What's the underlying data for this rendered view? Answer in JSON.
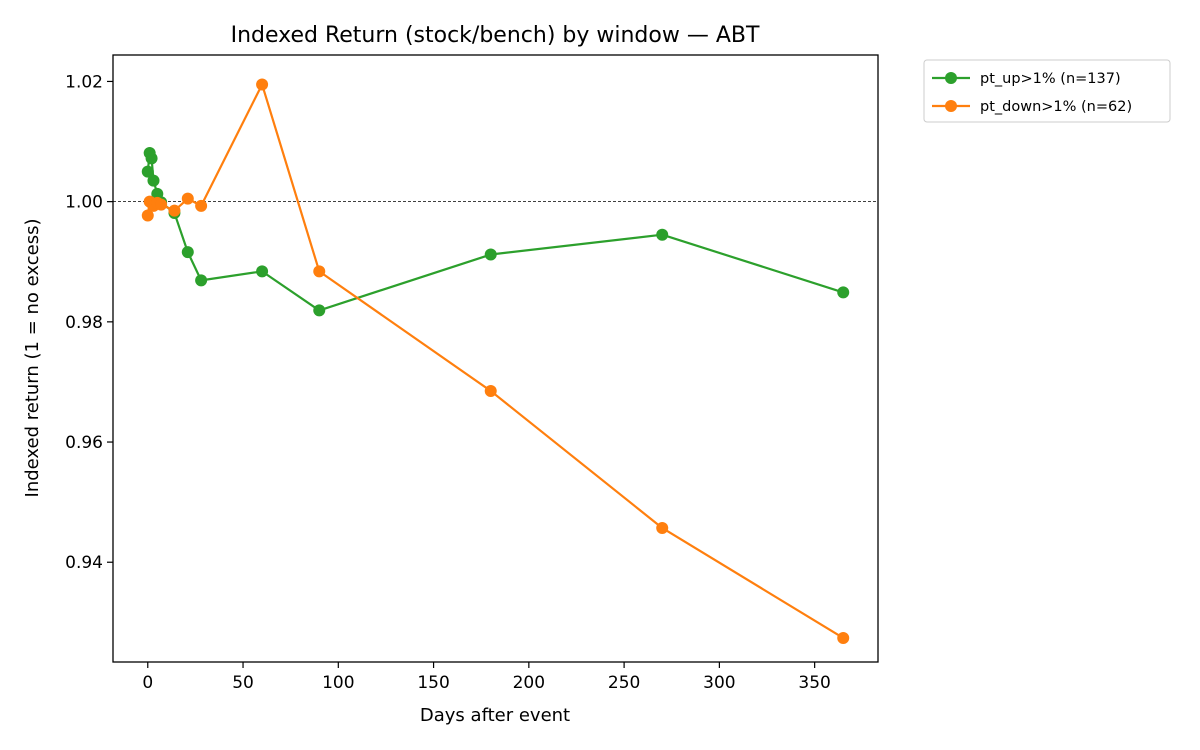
{
  "chart_data": {
    "type": "line",
    "title": "Indexed Return (stock/bench) by window — ABT",
    "xlabel": "Days after event",
    "ylabel": "Indexed return (1 = no excess)",
    "xlim": [
      -18.25,
      383.25
    ],
    "ylim": [
      0.9234,
      1.0244
    ],
    "xticks": [
      0,
      50,
      100,
      150,
      200,
      250,
      300,
      350
    ],
    "yticks": [
      0.94,
      0.96,
      0.98,
      1.0,
      1.02
    ],
    "ytick_labels": [
      "0.94",
      "0.96",
      "0.98",
      "1.00",
      "1.02"
    ],
    "reference_line": {
      "y": 1.0,
      "style": "dashed",
      "color": "#000000"
    },
    "grid": false,
    "legend_position": "outside-top-right",
    "series": [
      {
        "name": "pt_up>1% (n=137)",
        "color": "#2ca02c",
        "x": [
          0,
          1,
          2,
          3,
          5,
          7,
          14,
          21,
          28,
          60,
          90,
          180,
          270,
          365
        ],
        "y": [
          1.005,
          1.0081,
          1.0072,
          1.0035,
          1.0013,
          0.9999,
          0.9981,
          0.9916,
          0.9869,
          0.9884,
          0.9819,
          0.9912,
          0.9945,
          0.9849
        ]
      },
      {
        "name": "pt_down>1% (n=62)",
        "color": "#ff7f0e",
        "x": [
          0,
          1,
          2,
          3,
          5,
          7,
          14,
          21,
          28,
          60,
          90,
          180,
          270,
          365
        ],
        "y": [
          0.9977,
          1.0,
          0.9998,
          0.9993,
          0.9998,
          0.9995,
          0.9985,
          1.0005,
          0.9993,
          1.0195,
          0.9884,
          0.9685,
          0.9457,
          0.9274
        ]
      }
    ]
  }
}
